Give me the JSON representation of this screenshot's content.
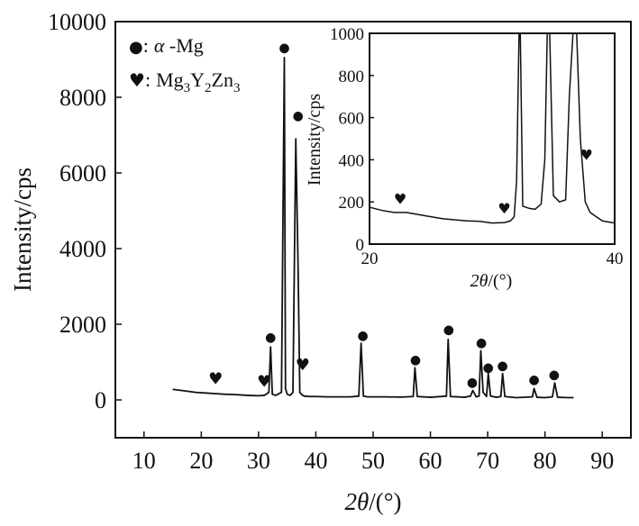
{
  "chart_data": [
    {
      "type": "line",
      "panel": "main",
      "xlabel_symbol": "2θ",
      "xlabel_unit": "/(°)",
      "ylabel": "Intensity/cps",
      "xlim": [
        5,
        95
      ],
      "ylim": [
        -1000,
        10000
      ],
      "xticks": [
        "10",
        "20",
        "30",
        "40",
        "50",
        "60",
        "70",
        "80",
        "90"
      ],
      "yticks": [
        "0",
        "2000",
        "4000",
        "6000",
        "8000",
        "10000"
      ],
      "series": [
        {
          "x": [
            15,
            16,
            17,
            18,
            19,
            20,
            21,
            22,
            23,
            24,
            25,
            26,
            27,
            28,
            29,
            30,
            31,
            31.8,
            32.1,
            32.4,
            33,
            34,
            34.5,
            34.7,
            35,
            35.5,
            36,
            36.5,
            36.9,
            37.2,
            37.6,
            38,
            39,
            40,
            42,
            44,
            46,
            47.5,
            47.9,
            48.3,
            49,
            52,
            55,
            57,
            57.3,
            57.7,
            60,
            62.8,
            63.1,
            63.5,
            66,
            67,
            67.4,
            68,
            68.5,
            68.8,
            69.2,
            69.8,
            70.1,
            70.5,
            71.5,
            72.3,
            72.6,
            73,
            75,
            77.8,
            78.1,
            78.6,
            80,
            81.3,
            81.7,
            82.2,
            84,
            85
          ],
          "y": [
            280,
            260,
            240,
            220,
            200,
            190,
            180,
            170,
            160,
            150,
            145,
            140,
            130,
            120,
            115,
            110,
            120,
            200,
            1400,
            150,
            120,
            200,
            9050,
            300,
            150,
            120,
            200,
            6900,
            3500,
            200,
            130,
            100,
            90,
            90,
            80,
            80,
            80,
            100,
            1500,
            100,
            80,
            80,
            75,
            90,
            850,
            90,
            70,
            100,
            1600,
            90,
            70,
            100,
            250,
            80,
            100,
            1300,
            200,
            90,
            700,
            100,
            70,
            90,
            700,
            90,
            60,
            80,
            300,
            70,
            60,
            80,
            450,
            70,
            60,
            60
          ]
        }
      ],
      "markers": [
        {
          "glyph": "●",
          "x": 32.1,
          "y": 1550
        },
        {
          "glyph": "●",
          "x": 34.5,
          "y": 9200
        },
        {
          "glyph": "●",
          "x": 36.9,
          "y": 7400
        },
        {
          "glyph": "●",
          "x": 48.2,
          "y": 1600
        },
        {
          "glyph": "●",
          "x": 57.4,
          "y": 950
        },
        {
          "glyph": "●",
          "x": 63.2,
          "y": 1750
        },
        {
          "glyph": "●",
          "x": 67.3,
          "y": 360
        },
        {
          "glyph": "●",
          "x": 68.9,
          "y": 1400
        },
        {
          "glyph": "●",
          "x": 70.1,
          "y": 750
        },
        {
          "glyph": "●",
          "x": 72.6,
          "y": 800
        },
        {
          "glyph": "●",
          "x": 78.1,
          "y": 430
        },
        {
          "glyph": "●",
          "x": 81.6,
          "y": 560
        },
        {
          "glyph": "♥",
          "x": 22.5,
          "y": 420
        },
        {
          "glyph": "♥",
          "x": 31.0,
          "y": 340
        },
        {
          "glyph": "♥",
          "x": 37.7,
          "y": 780
        }
      ],
      "legend": [
        {
          "glyph": "●",
          "symbol": "α",
          "text": " -Mg"
        },
        {
          "glyph": "♥",
          "parts": [
            "Mg",
            "3",
            "Y",
            "2",
            "Zn",
            "3"
          ]
        }
      ],
      "legend_separator": ":",
      "legend_position": "top-left"
    },
    {
      "type": "line",
      "panel": "inset",
      "xlabel_symbol": "2θ",
      "xlabel_unit": "/(°)",
      "ylabel": "Intensity/cps",
      "xlim": [
        20,
        40
      ],
      "ylim": [
        0,
        1000
      ],
      "xticks": [
        "20",
        "40"
      ],
      "yticks": [
        "0",
        "200",
        "400",
        "600",
        "800",
        "1000"
      ],
      "series": [
        {
          "x": [
            20,
            21,
            22,
            23,
            24,
            25,
            26,
            27,
            28,
            29,
            30,
            31,
            31.5,
            31.8,
            32.0,
            32.2,
            32.3,
            32.5,
            33,
            33.5,
            34,
            34.3,
            34.5,
            34.7,
            35,
            35.5,
            36,
            36.3,
            36.6,
            36.9,
            37.2,
            37.6,
            38,
            38.5,
            39,
            40
          ],
          "y": [
            175,
            160,
            150,
            150,
            140,
            130,
            120,
            115,
            110,
            108,
            100,
            102,
            110,
            130,
            300,
            1000,
            1000,
            180,
            170,
            165,
            190,
            400,
            1000,
            1000,
            230,
            200,
            210,
            700,
            1000,
            1000,
            500,
            200,
            150,
            130,
            110,
            100
          ]
        }
      ],
      "markers": [
        {
          "glyph": "♥",
          "x": 22.5,
          "y": 190
        },
        {
          "glyph": "♥",
          "x": 31.0,
          "y": 145
        },
        {
          "glyph": "♥",
          "x": 37.7,
          "y": 400
        }
      ]
    }
  ]
}
